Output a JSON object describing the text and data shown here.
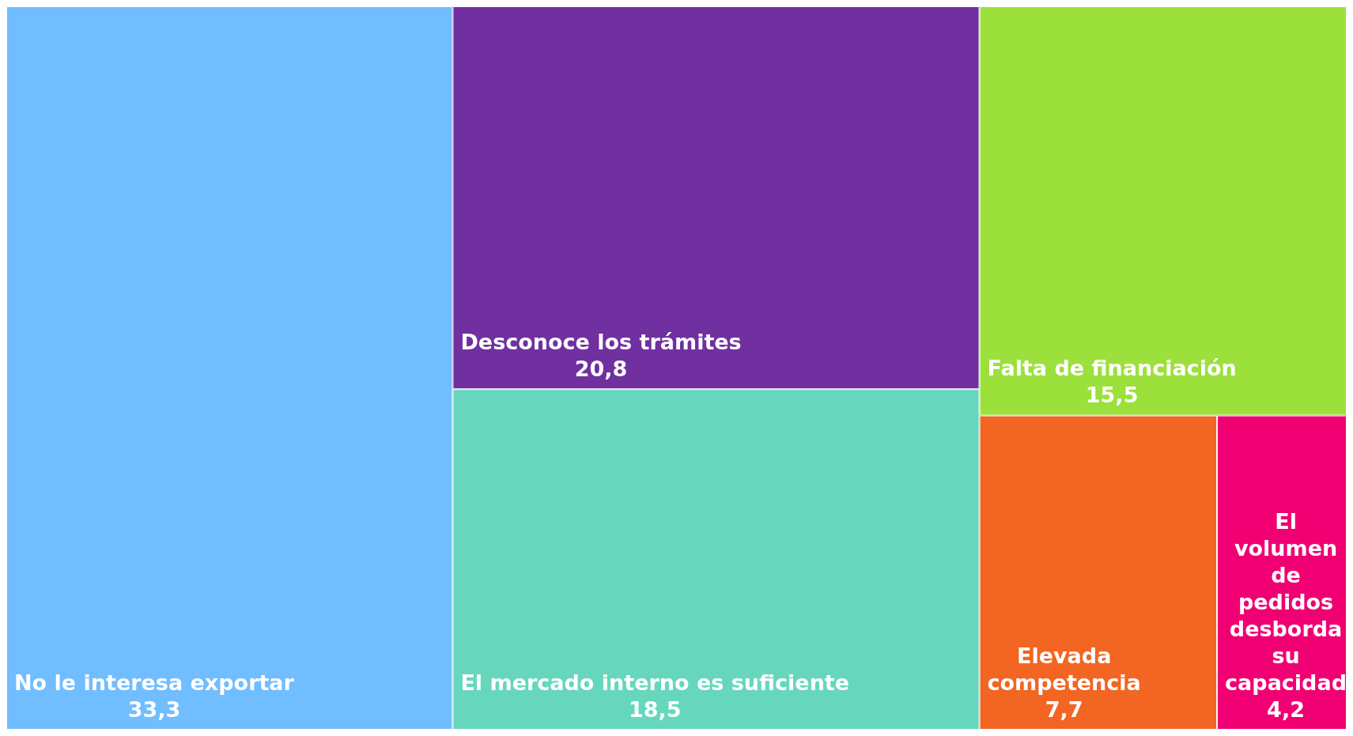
{
  "chart_data": {
    "type": "other",
    "categories": [
      "No le interesa exportar",
      "Desconoce los trámites",
      "El mercado interno es suficiente",
      "Falta de financiación",
      "Elevada competencia",
      "El volumen de pedidos desborda su capacidad"
    ],
    "values": [
      33.3,
      20.8,
      18.5,
      15.5,
      7.7,
      4.2
    ],
    "value_labels": [
      "33,3",
      "20,8",
      "18,5",
      "15,5",
      "7,7",
      "4,2"
    ],
    "colors": [
      "#70bdff",
      "#7030a0",
      "#66d7bc",
      "#9ce03c",
      "#f26522",
      "#f00073"
    ]
  }
}
